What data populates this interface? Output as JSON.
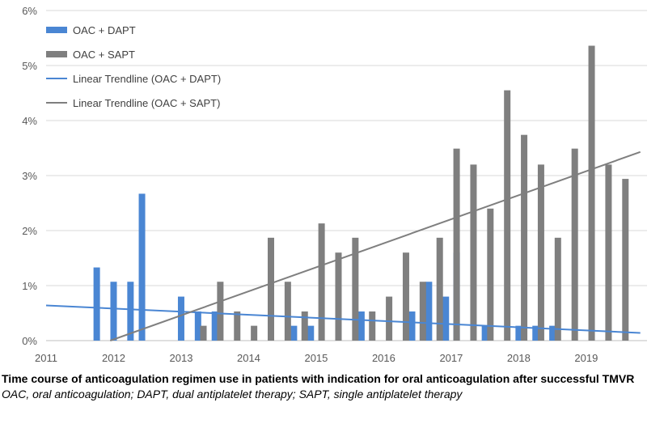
{
  "chart_data": {
    "type": "bar",
    "title": "",
    "xlabel": "",
    "ylabel": "",
    "ylim": [
      0,
      6
    ],
    "xlim": [
      2011,
      2019.9
    ],
    "y_ticks": [
      0,
      1,
      2,
      3,
      4,
      5,
      6
    ],
    "y_tick_labels": [
      "0%",
      "1%",
      "2%",
      "3%",
      "4%",
      "5%",
      "6%"
    ],
    "x_ticks": [
      2011,
      2012,
      2013,
      2014,
      2015,
      2016,
      2017,
      2018,
      2019
    ],
    "x_tick_labels": [
      "2011",
      "2012",
      "2013",
      "2014",
      "2015",
      "2016",
      "2017",
      "2018",
      "2019"
    ],
    "grid": "horizontal",
    "legend_position": "top-left",
    "series": [
      {
        "name": "OAC + DAPT",
        "kind": "bar",
        "color": "#4a86d3",
        "points": [
          [
            2011.75,
            1.33
          ],
          [
            2012.0,
            1.07
          ],
          [
            2012.25,
            1.07
          ],
          [
            2012.42,
            2.67
          ],
          [
            2013.0,
            0.8
          ],
          [
            2013.25,
            0.53
          ],
          [
            2013.5,
            0.53
          ],
          [
            2014.67,
            0.27
          ],
          [
            2014.92,
            0.27
          ],
          [
            2015.67,
            0.53
          ],
          [
            2016.42,
            0.53
          ],
          [
            2016.67,
            1.07
          ],
          [
            2016.92,
            0.8
          ],
          [
            2017.08,
            1.6
          ],
          [
            2017.5,
            0.27
          ],
          [
            2018.0,
            0.27
          ],
          [
            2018.25,
            0.27
          ],
          [
            2018.5,
            0.27
          ]
        ]
      },
      {
        "name": "OAC + SAPT",
        "kind": "bar",
        "color": "#7f7f7f",
        "points": [
          [
            2013.33,
            0.27
          ],
          [
            2013.58,
            1.07
          ],
          [
            2013.83,
            0.53
          ],
          [
            2014.08,
            0.27
          ],
          [
            2014.33,
            1.87
          ],
          [
            2014.58,
            1.07
          ],
          [
            2014.83,
            0.53
          ],
          [
            2015.08,
            2.13
          ],
          [
            2015.33,
            1.6
          ],
          [
            2015.58,
            1.87
          ],
          [
            2015.83,
            0.53
          ],
          [
            2016.08,
            0.8
          ],
          [
            2016.33,
            1.6
          ],
          [
            2016.58,
            1.07
          ],
          [
            2016.83,
            1.87
          ],
          [
            2017.08,
            3.49
          ],
          [
            2017.33,
            3.2
          ],
          [
            2017.58,
            2.4
          ],
          [
            2017.83,
            4.55
          ],
          [
            2018.08,
            3.74
          ],
          [
            2018.33,
            3.2
          ],
          [
            2018.58,
            1.87
          ],
          [
            2018.83,
            3.49
          ],
          [
            2019.08,
            5.36
          ],
          [
            2019.33,
            3.2
          ],
          [
            2019.58,
            2.94
          ]
        ]
      },
      {
        "name": "Linear Trendline (OAC + DAPT)",
        "kind": "line",
        "color": "#4a86d3",
        "points": [
          [
            2011.0,
            0.64
          ],
          [
            2019.8,
            0.14
          ]
        ]
      },
      {
        "name": "Linear Trendline (OAC + SAPT)",
        "kind": "line",
        "color": "#7f7f7f",
        "points": [
          [
            2011.95,
            0.0
          ],
          [
            2019.8,
            3.43
          ]
        ]
      }
    ]
  },
  "caption": {
    "title": "Time course of anticoagulation regimen use in patients with indication for oral anticoagulation after successful TMVR",
    "footnote": "OAC, oral anticoagulation; DAPT, dual antiplatelet therapy; SAPT, single antiplatelet therapy"
  }
}
